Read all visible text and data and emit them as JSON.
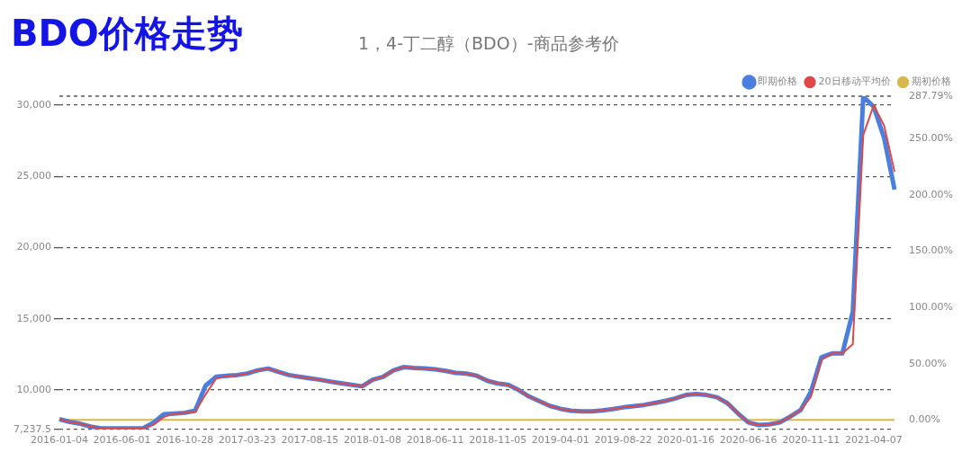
{
  "chart_data": {
    "type": "line",
    "title": "BDO价格走势",
    "subtitle": "1，4-丁二醇（BDO）-商品参考价",
    "categories": [
      "2016-01-04",
      null,
      null,
      null,
      null,
      null,
      "2016-06-01",
      null,
      null,
      null,
      null,
      null,
      "2016-10-28",
      null,
      null,
      null,
      null,
      null,
      "2017-03-23",
      null,
      null,
      null,
      null,
      null,
      "2017-08-15",
      null,
      null,
      null,
      null,
      null,
      "2018-01-08",
      null,
      null,
      null,
      null,
      null,
      "2018-06-11",
      null,
      null,
      null,
      null,
      null,
      "2018-11-05",
      null,
      null,
      null,
      null,
      null,
      "2019-04-01",
      null,
      null,
      null,
      null,
      null,
      "2019-08-22",
      null,
      null,
      null,
      null,
      null,
      "2020-01-16",
      null,
      null,
      null,
      null,
      null,
      "2020-06-16",
      null,
      null,
      null,
      null,
      null,
      "2020-11-11",
      null,
      null,
      null,
      null,
      null,
      "2021-04-07",
      null,
      null
    ],
    "series": [
      {
        "name": "即期价格",
        "color": "#4a7fe0",
        "values": [
          7950,
          7760,
          7630,
          7430,
          7300,
          7300,
          7300,
          7300,
          7300,
          7700,
          8300,
          8350,
          8400,
          8550,
          10300,
          10930,
          11000,
          11050,
          11160,
          11380,
          11510,
          11270,
          11050,
          10930,
          10820,
          10720,
          10590,
          10480,
          10370,
          10260,
          10720,
          10930,
          11380,
          11610,
          11550,
          11510,
          11450,
          11340,
          11200,
          11150,
          11000,
          10650,
          10460,
          10360,
          10000,
          9540,
          9210,
          8880,
          8680,
          8550,
          8500,
          8500,
          8570,
          8660,
          8780,
          8860,
          8950,
          9090,
          9230,
          9410,
          9650,
          9720,
          9650,
          9490,
          9070,
          8360,
          7720,
          7540,
          7590,
          7720,
          8130,
          8590,
          9890,
          12300,
          12570,
          12570,
          15500,
          30600,
          29890,
          27700,
          24080
        ]
      },
      {
        "name": "20日移动平均价",
        "color": "#e04848",
        "values": [
          7950,
          7760,
          7630,
          7430,
          7300,
          7300,
          7300,
          7300,
          7300,
          7550,
          8100,
          8350,
          8400,
          8450,
          9680,
          10800,
          11000,
          11050,
          11160,
          11380,
          11510,
          11270,
          11050,
          10930,
          10820,
          10720,
          10590,
          10480,
          10370,
          10260,
          10720,
          10930,
          11380,
          11610,
          11550,
          11510,
          11450,
          11340,
          11200,
          11150,
          11000,
          10650,
          10460,
          10360,
          10000,
          9540,
          9210,
          8880,
          8680,
          8550,
          8500,
          8500,
          8570,
          8660,
          8780,
          8860,
          8950,
          9090,
          9230,
          9410,
          9650,
          9720,
          9650,
          9490,
          9070,
          8360,
          7720,
          7540,
          7590,
          7720,
          8130,
          8590,
          9540,
          12130,
          12570,
          12570,
          13220,
          27900,
          30000,
          28570,
          25320
        ]
      },
      {
        "name": "期初价格",
        "color": "#d9b84a",
        "values": [
          7900,
          7900,
          7900,
          7900,
          7900,
          7900,
          7900,
          7900,
          7900,
          7900,
          7900,
          7900,
          7900,
          7900,
          7900,
          7900,
          7900,
          7900,
          7900,
          7900,
          7900,
          7900,
          7900,
          7900,
          7900,
          7900,
          7900,
          7900,
          7900,
          7900,
          7900,
          7900,
          7900,
          7900,
          7900,
          7900,
          7900,
          7900,
          7900,
          7900,
          7900,
          7900,
          7900,
          7900,
          7900,
          7900,
          7900,
          7900,
          7900,
          7900,
          7900,
          7900,
          7900,
          7900,
          7900,
          7900,
          7900,
          7900,
          7900,
          7900,
          7900,
          7900,
          7900,
          7900,
          7900,
          7900,
          7900,
          7900,
          7900,
          7900,
          7900,
          7900,
          7900,
          7900,
          7900,
          7900,
          7900,
          7900,
          7900,
          7900,
          7900
        ]
      }
    ],
    "ylim": [
      7237.5,
      30636
    ],
    "yticks": [
      {
        "value": 7237.5,
        "label": "7,237.5"
      },
      {
        "value": 10000,
        "label": "10,000"
      },
      {
        "value": 15000,
        "label": "15,000"
      },
      {
        "value": 20000,
        "label": "20,000"
      },
      {
        "value": 25000,
        "label": "25,000"
      },
      {
        "value": 30000,
        "label": "30,000"
      }
    ],
    "y2lim": [
      -8.39,
      287.79
    ],
    "y2ticks": [
      {
        "value": 0,
        "label": "0.00%"
      },
      {
        "value": 50,
        "label": "50.00%"
      },
      {
        "value": 100,
        "label": "100.00%"
      },
      {
        "value": 150,
        "label": "150.00%"
      },
      {
        "value": 200,
        "label": "200.00%"
      },
      {
        "value": 250,
        "label": "250.00%"
      },
      {
        "value": 287.79,
        "label": "287.79%"
      }
    ],
    "grid": "y",
    "legend": "top right",
    "marker": "none",
    "line_style": "solid"
  }
}
